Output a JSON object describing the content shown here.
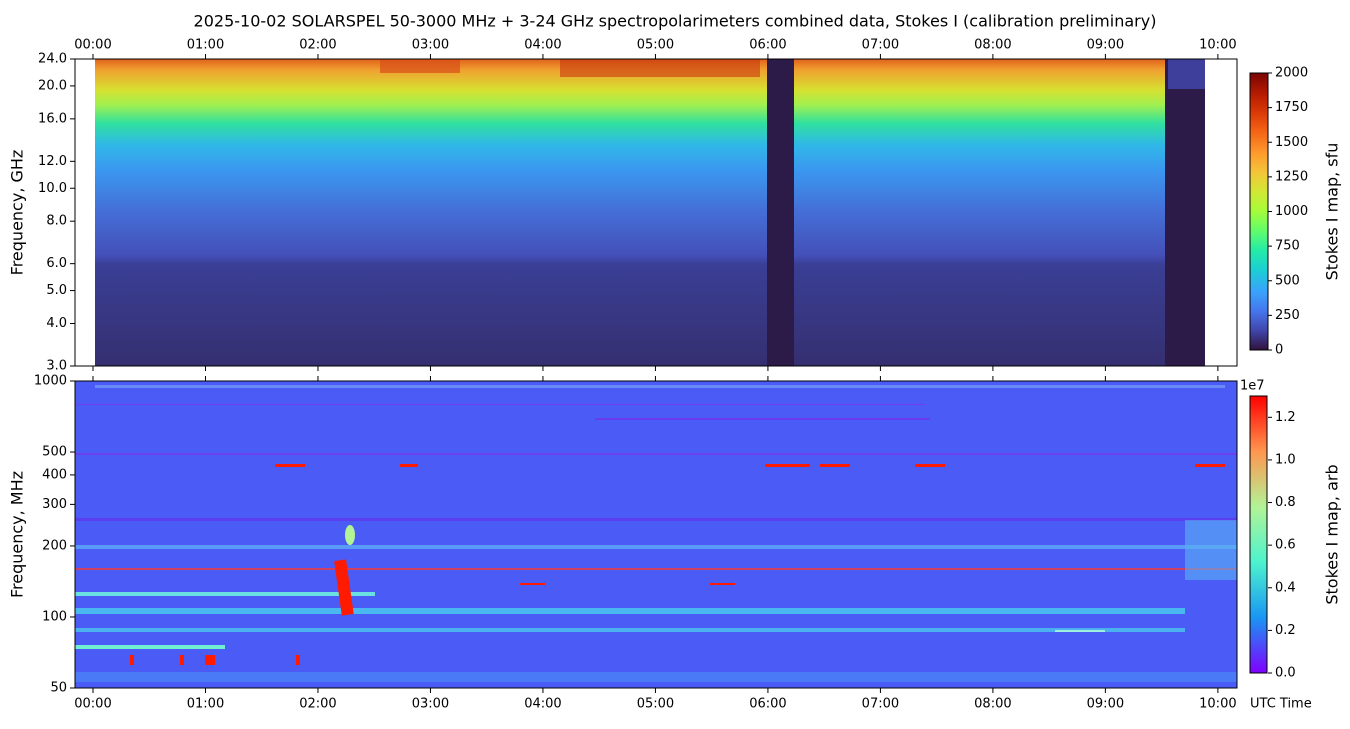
{
  "title": "2025-10-02  SOLARSPEL  50-3000 MHz  +  3-24 GHz  spectropolarimeters combined data,  Stokes I  (calibration preliminary)",
  "chart_data": [
    {
      "type": "heatmap",
      "ylabel": "Frequency, GHz",
      "log_y": true,
      "ylim": [
        3,
        24
      ],
      "xlim": [
        -0.16,
        10.17
      ],
      "xtick_side": "top",
      "xticks": [
        {
          "value": 0,
          "label": "00:00"
        },
        {
          "value": 1,
          "label": "01:00"
        },
        {
          "value": 2,
          "label": "02:00"
        },
        {
          "value": 3,
          "label": "03:00"
        },
        {
          "value": 4,
          "label": "04:00"
        },
        {
          "value": 5,
          "label": "05:00"
        },
        {
          "value": 6,
          "label": "06:00"
        },
        {
          "value": 7,
          "label": "07:00"
        },
        {
          "value": 8,
          "label": "08:00"
        },
        {
          "value": 9,
          "label": "09:00"
        },
        {
          "value": 10,
          "label": "10:00"
        }
      ],
      "yticks": [
        {
          "value": 3,
          "label": "3.0"
        },
        {
          "value": 4,
          "label": "4.0"
        },
        {
          "value": 5,
          "label": "5.0"
        },
        {
          "value": 6,
          "label": "6.0"
        },
        {
          "value": 8,
          "label": "8.0"
        },
        {
          "value": 10,
          "label": "10.0"
        },
        {
          "value": 12,
          "label": "12.0"
        },
        {
          "value": 16,
          "label": "16.0"
        },
        {
          "value": 20,
          "label": "20.0"
        },
        {
          "value": 24,
          "label": "24.0"
        }
      ],
      "colorbar": {
        "label": "Stokes I map, sfu",
        "lim": [
          0,
          2000
        ],
        "ticks": [
          0,
          250,
          500,
          750,
          1000,
          1250,
          1500,
          1750,
          2000
        ]
      }
    },
    {
      "type": "heatmap",
      "ylabel": "Frequency, MHz",
      "log_y": true,
      "ylim": [
        50,
        1000
      ],
      "xlim": [
        -0.16,
        10.17
      ],
      "xtick_side": "bottom",
      "xlabel": "UTC Time",
      "xticks": [
        {
          "value": 0,
          "label": "00:00"
        },
        {
          "value": 1,
          "label": "01:00"
        },
        {
          "value": 2,
          "label": "02:00"
        },
        {
          "value": 3,
          "label": "03:00"
        },
        {
          "value": 4,
          "label": "04:00"
        },
        {
          "value": 5,
          "label": "05:00"
        },
        {
          "value": 6,
          "label": "06:00"
        },
        {
          "value": 7,
          "label": "07:00"
        },
        {
          "value": 8,
          "label": "08:00"
        },
        {
          "value": 9,
          "label": "09:00"
        },
        {
          "value": 10,
          "label": "10:00"
        }
      ],
      "yticks": [
        50,
        100,
        200,
        300,
        400,
        500,
        1000
      ],
      "colorbar": {
        "label": "Stokes I map, arb",
        "offset_text": "1e7",
        "lim": [
          0,
          1.3
        ],
        "ticks": [
          {
            "value": 0,
            "label": "0.0"
          },
          {
            "value": 0.2,
            "label": "0.2"
          },
          {
            "value": 0.4,
            "label": "0.4"
          },
          {
            "value": 0.6,
            "label": "0.6"
          },
          {
            "value": 0.8,
            "label": "0.8"
          },
          {
            "value": 1.0,
            "label": "1.0"
          },
          {
            "value": 1.2,
            "label": "1.2"
          }
        ]
      }
    }
  ]
}
